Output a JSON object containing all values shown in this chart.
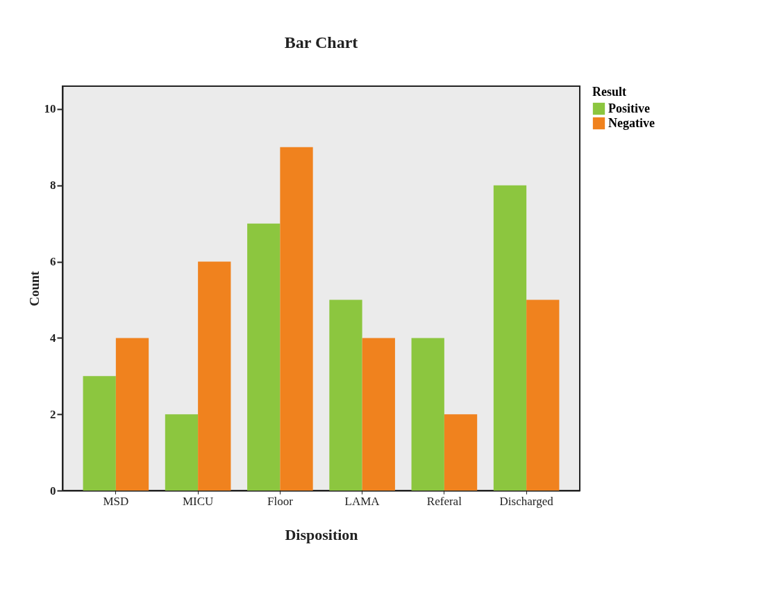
{
  "chart_data": {
    "type": "bar",
    "title": "Bar Chart",
    "xlabel": "Disposition",
    "ylabel": "Count",
    "legend_title": "Result",
    "categories": [
      "MSD",
      "MICU",
      "Floor",
      "LAMA",
      "Referal",
      "Discharged"
    ],
    "series": [
      {
        "name": "Positive",
        "color": "#8cc63f",
        "values": [
          3,
          2,
          7,
          5,
          4,
          8
        ]
      },
      {
        "name": "Negative",
        "color": "#f0821e",
        "values": [
          4,
          6,
          9,
          4,
          2,
          5
        ]
      }
    ],
    "ylim": [
      0,
      10.6
    ],
    "yticks": [
      0,
      2,
      4,
      6,
      8,
      10
    ],
    "grid": false,
    "legend": "top right"
  }
}
